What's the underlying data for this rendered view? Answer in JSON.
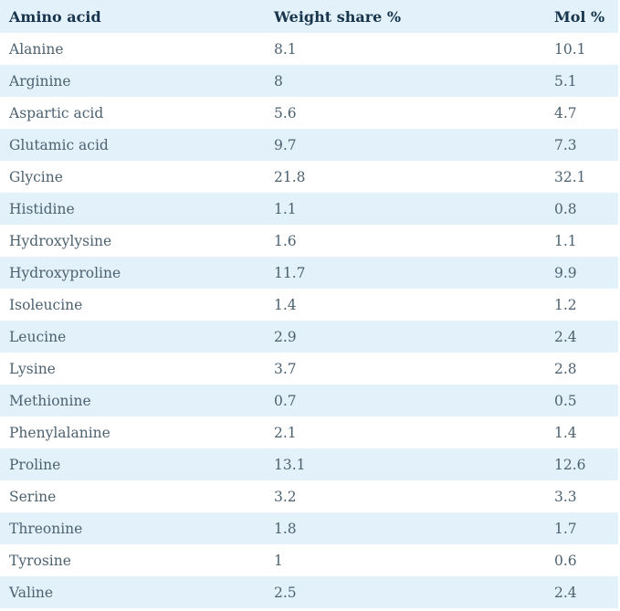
{
  "colors": {
    "row_alt_bg": "#e3f1fa",
    "row_bg": "#ffffff",
    "header_text": "#17344c",
    "body_text": "#4d6270"
  },
  "table": {
    "columns": [
      {
        "label": "Amino acid"
      },
      {
        "label": "Weight share %"
      },
      {
        "label": "Mol %"
      }
    ],
    "rows": [
      {
        "name": "Alanine",
        "weight_share": "8.1",
        "mol": "10.1"
      },
      {
        "name": "Arginine",
        "weight_share": "8",
        "mol": "5.1"
      },
      {
        "name": "Aspartic acid",
        "weight_share": "5.6",
        "mol": "4.7"
      },
      {
        "name": "Glutamic acid",
        "weight_share": "9.7",
        "mol": "7.3"
      },
      {
        "name": "Glycine",
        "weight_share": "21.8",
        "mol": "32.1"
      },
      {
        "name": "Histidine",
        "weight_share": "1.1",
        "mol": "0.8"
      },
      {
        "name": "Hydroxylysine",
        "weight_share": "1.6",
        "mol": "1.1"
      },
      {
        "name": "Hydroxyproline",
        "weight_share": "11.7",
        "mol": "9.9"
      },
      {
        "name": "Isoleucine",
        "weight_share": "1.4",
        "mol": "1.2"
      },
      {
        "name": "Leucine",
        "weight_share": "2.9",
        "mol": "2.4"
      },
      {
        "name": "Lysine",
        "weight_share": "3.7",
        "mol": "2.8"
      },
      {
        "name": "Methionine",
        "weight_share": "0.7",
        "mol": "0.5"
      },
      {
        "name": "Phenylalanine",
        "weight_share": "2.1",
        "mol": "1.4"
      },
      {
        "name": "Proline",
        "weight_share": "13.1",
        "mol": "12.6"
      },
      {
        "name": "Serine",
        "weight_share": "3.2",
        "mol": "3.3"
      },
      {
        "name": "Threonine",
        "weight_share": "1.8",
        "mol": "1.7"
      },
      {
        "name": "Tyrosine",
        "weight_share": "1",
        "mol": "0.6"
      },
      {
        "name": "Valine",
        "weight_share": "2.5",
        "mol": "2.4"
      }
    ]
  },
  "chart_data": {
    "type": "table",
    "title": "",
    "columns": [
      "Amino acid",
      "Weight share %",
      "Mol %"
    ],
    "rows": [
      [
        "Alanine",
        8.1,
        10.1
      ],
      [
        "Arginine",
        8,
        5.1
      ],
      [
        "Aspartic acid",
        5.6,
        4.7
      ],
      [
        "Glutamic acid",
        9.7,
        7.3
      ],
      [
        "Glycine",
        21.8,
        32.1
      ],
      [
        "Histidine",
        1.1,
        0.8
      ],
      [
        "Hydroxylysine",
        1.6,
        1.1
      ],
      [
        "Hydroxyproline",
        11.7,
        9.9
      ],
      [
        "Isoleucine",
        1.4,
        1.2
      ],
      [
        "Leucine",
        2.9,
        2.4
      ],
      [
        "Lysine",
        3.7,
        2.8
      ],
      [
        "Methionine",
        0.7,
        0.5
      ],
      [
        "Phenylalanine",
        2.1,
        1.4
      ],
      [
        "Proline",
        13.1,
        12.6
      ],
      [
        "Serine",
        3.2,
        3.3
      ],
      [
        "Threonine",
        1.8,
        1.7
      ],
      [
        "Tyrosine",
        1,
        0.6
      ],
      [
        "Valine",
        2.5,
        2.4
      ]
    ],
    "layout": {
      "zebra_striping": true,
      "header_background": "#e3f1fa",
      "grid": false
    }
  }
}
